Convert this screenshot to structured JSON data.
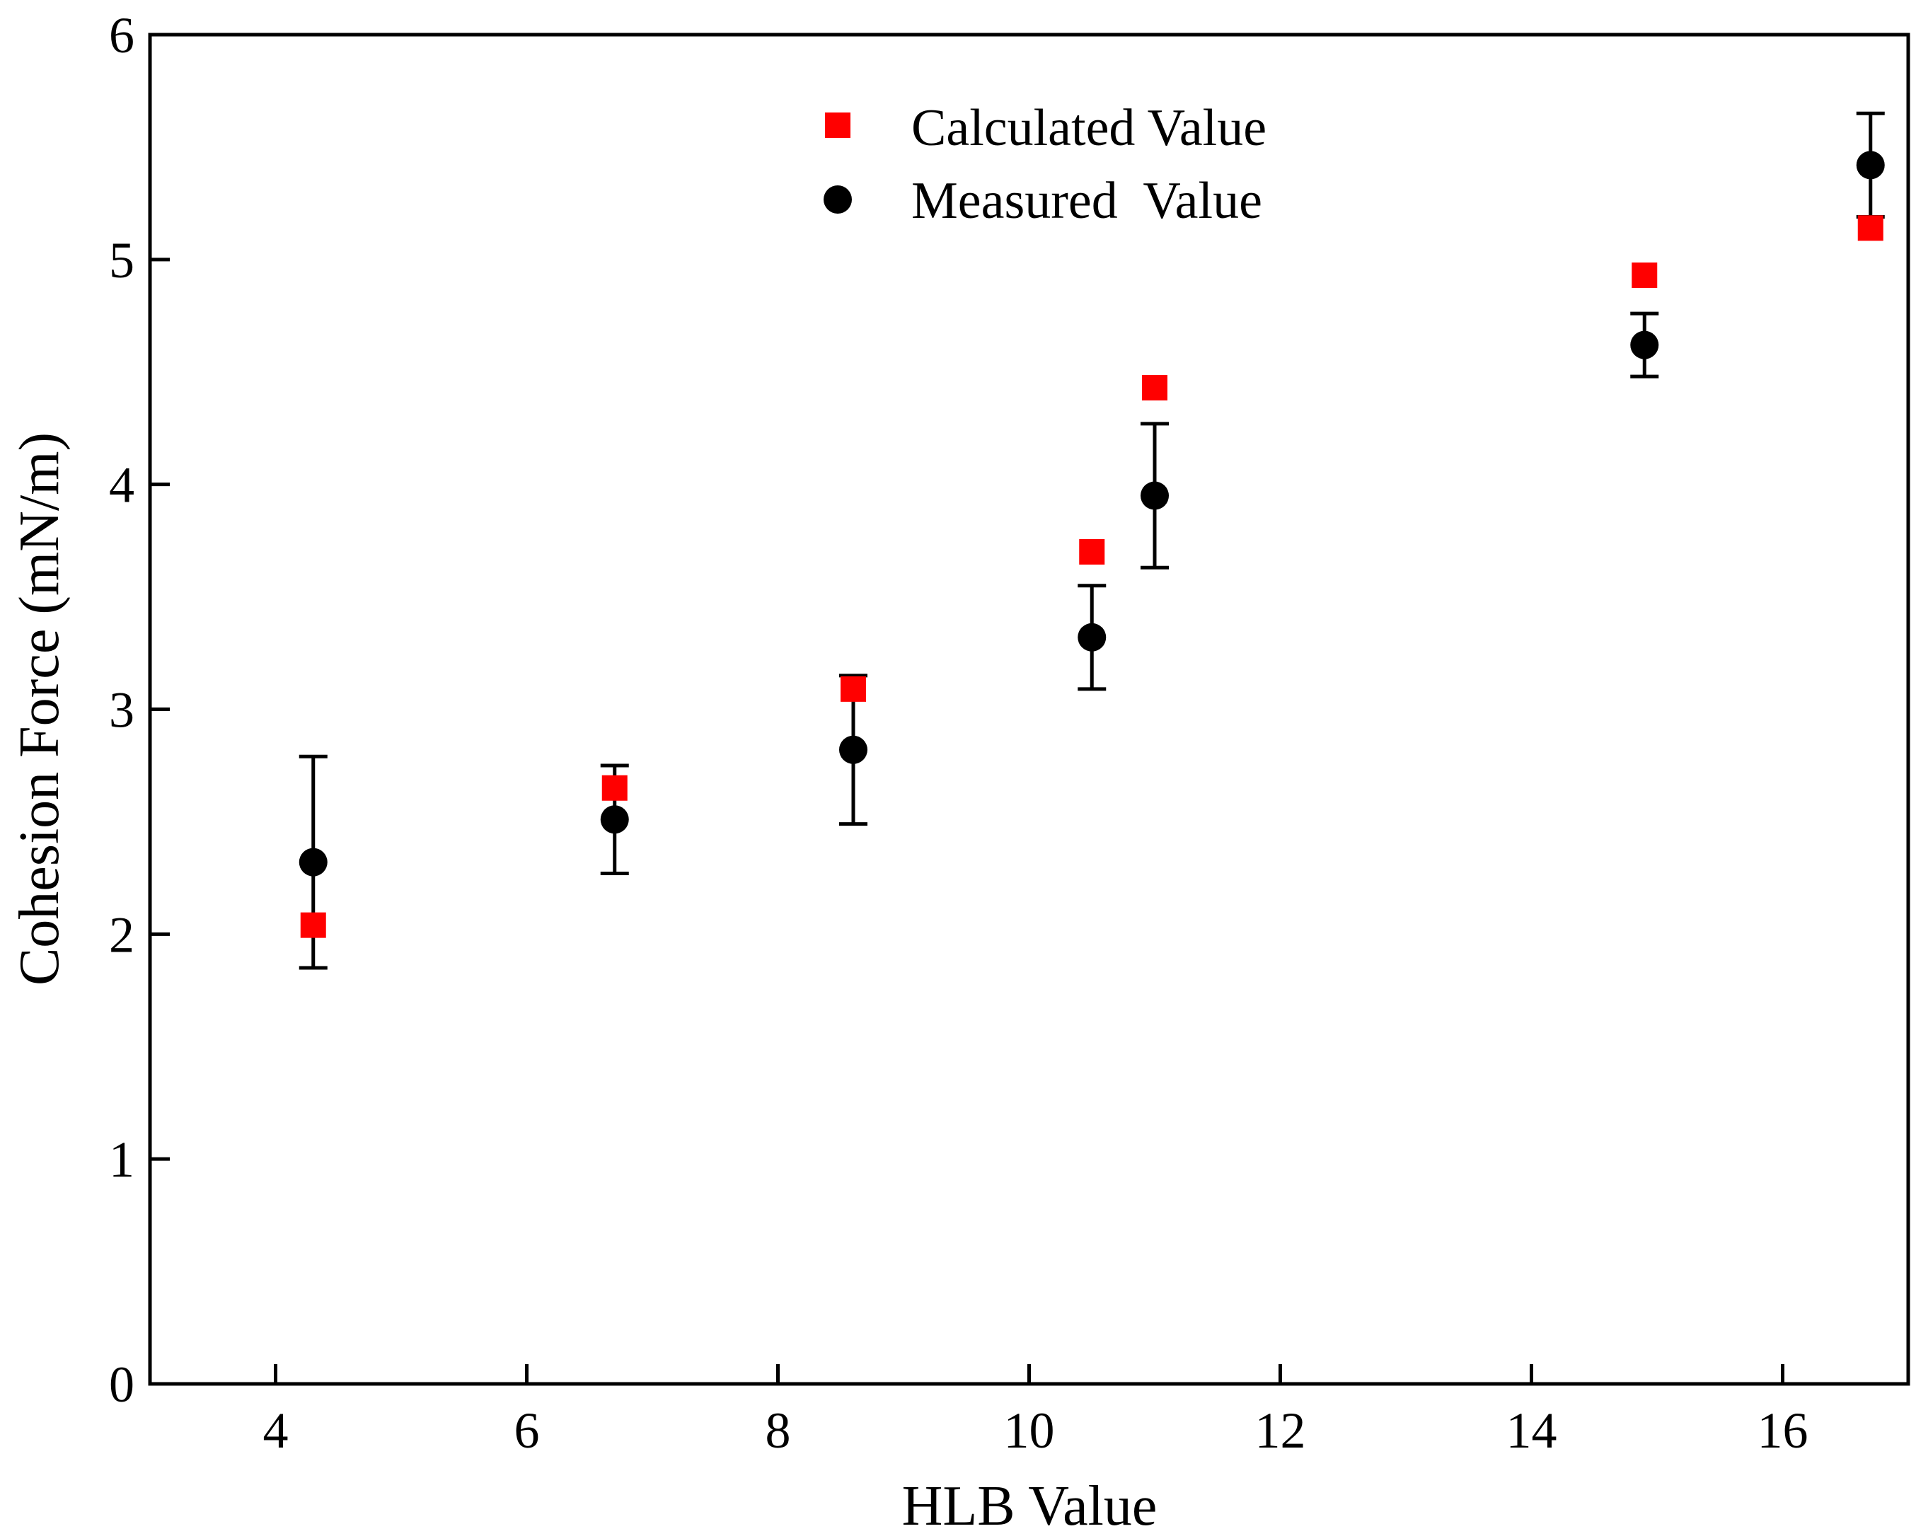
{
  "chart_data": {
    "type": "scatter",
    "title": "",
    "xlabel": "HLB Value",
    "ylabel": "Cohesion Force (mN/m)",
    "xlim": [
      3,
      17
    ],
    "ylim": [
      0,
      6
    ],
    "xticks": [
      4,
      6,
      8,
      10,
      12,
      14,
      16
    ],
    "yticks": [
      0,
      1,
      2,
      3,
      4,
      5,
      6
    ],
    "x_tick_labels": [
      "4",
      "6",
      "8",
      "10",
      "12",
      "14",
      "16"
    ],
    "y_tick_labels": [
      "0",
      "1",
      "2",
      "3",
      "4",
      "5",
      "6"
    ],
    "grid": false,
    "legend_position": "top-center",
    "series": [
      {
        "name": "Calculated Value",
        "marker": "square",
        "color": "#ff0000",
        "x": [
          4.3,
          6.7,
          8.6,
          10.5,
          11.0,
          14.9,
          16.7
        ],
        "y": [
          2.04,
          2.65,
          3.09,
          3.7,
          4.43,
          4.93,
          5.14
        ]
      },
      {
        "name": "Measured  Value",
        "marker": "circle",
        "color": "#000000",
        "x": [
          4.3,
          6.7,
          8.6,
          10.5,
          11.0,
          14.9,
          16.7
        ],
        "y": [
          2.32,
          2.51,
          2.82,
          3.32,
          3.95,
          4.62,
          5.42
        ],
        "error": [
          0.47,
          0.24,
          0.33,
          0.23,
          0.32,
          0.14,
          0.23
        ]
      }
    ]
  }
}
